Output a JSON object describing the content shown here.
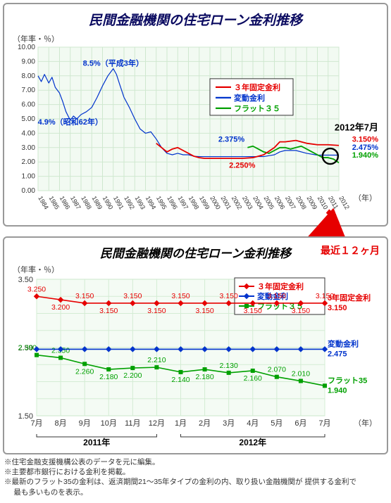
{
  "palette": {
    "red": "#e60000",
    "blue": "#0033cc",
    "green": "#00a000",
    "grid": "#cfe8cf",
    "axis": "#444444",
    "panel_border": "#999999",
    "text": "#222222",
    "black": "#000000",
    "title_top": "#0a0a60",
    "title_bottom": "#000000"
  },
  "chart1": {
    "title": "民間金融機関の住宅ローン金利推移",
    "title_color": "#0a0a60",
    "title_fontsize": 19,
    "y_label": "（年率・％）",
    "x_label": "（年）",
    "plot_bg": "#f2faf2",
    "grid_color": "#cfe8cf",
    "ylim": [
      0,
      10
    ],
    "ytick_step": 1.0,
    "yticks": [
      "0.00",
      "1.00",
      "2.00",
      "3.00",
      "4.00",
      "5.00",
      "6.00",
      "7.00",
      "8.00",
      "9.00",
      "10.00"
    ],
    "x_years": [
      1984,
      1985,
      1986,
      1987,
      1988,
      1989,
      1990,
      1991,
      1992,
      1993,
      1994,
      1995,
      1996,
      1997,
      1998,
      1999,
      2000,
      2001,
      2002,
      2003,
      2004,
      2005,
      2006,
      2007,
      2008,
      2009,
      2010,
      2011,
      2012
    ],
    "legend": [
      {
        "label": "３年固定金利",
        "color": "#e60000"
      },
      {
        "label": "変動金利",
        "color": "#0033cc"
      },
      {
        "label": "フラット３５",
        "color": "#00a000"
      }
    ],
    "annotations": [
      {
        "text": "8.5%（平成3年）",
        "color": "#0033cc",
        "x_year": 1991,
        "y_val": 8.7,
        "anchor": "bottom"
      },
      {
        "text": "4.9%（昭和62年）",
        "color": "#0033cc",
        "x_year": 1987,
        "y_val": 4.6,
        "anchor": "top"
      },
      {
        "text": "2.375%",
        "color": "#0033cc",
        "x_year": 2002,
        "y_val": 3.4,
        "anchor": ""
      },
      {
        "text": "2.250%",
        "color": "#e60000",
        "x_year": 2003,
        "y_val": 1.6,
        "anchor": ""
      }
    ],
    "end_marker": {
      "label": "2012年7月",
      "label_color": "#000000",
      "circle_year": 2011.2,
      "circle_val": 2.4,
      "values": [
        {
          "text": "3.150%",
          "color": "#e60000"
        },
        {
          "text": "2.475%",
          "color": "#0033cc"
        },
        {
          "text": "1.940%",
          "color": "#00a000"
        }
      ]
    },
    "series": {
      "variable": {
        "color": "#0033cc",
        "stroke_width": 1.2,
        "points": [
          [
            1984.0,
            8.0
          ],
          [
            1984.3,
            7.6
          ],
          [
            1984.6,
            8.1
          ],
          [
            1985.0,
            7.5
          ],
          [
            1985.3,
            7.9
          ],
          [
            1985.6,
            7.2
          ],
          [
            1986.0,
            6.8
          ],
          [
            1986.3,
            6.2
          ],
          [
            1986.6,
            5.5
          ],
          [
            1987.0,
            4.9
          ],
          [
            1987.3,
            5.2
          ],
          [
            1987.6,
            5.0
          ],
          [
            1988.0,
            5.3
          ],
          [
            1988.5,
            5.5
          ],
          [
            1989.0,
            5.8
          ],
          [
            1989.5,
            6.5
          ],
          [
            1990.0,
            7.3
          ],
          [
            1990.5,
            8.0
          ],
          [
            1991.0,
            8.5
          ],
          [
            1991.3,
            8.1
          ],
          [
            1991.6,
            7.4
          ],
          [
            1992.0,
            6.5
          ],
          [
            1992.5,
            5.8
          ],
          [
            1993.0,
            5.0
          ],
          [
            1993.5,
            4.3
          ],
          [
            1994.0,
            4.0
          ],
          [
            1994.5,
            4.1
          ],
          [
            1995.0,
            3.6
          ],
          [
            1995.5,
            3.0
          ],
          [
            1996.0,
            2.6
          ],
          [
            1996.5,
            2.5
          ],
          [
            1997.0,
            2.6
          ],
          [
            1997.5,
            2.5
          ],
          [
            1998.0,
            2.5
          ],
          [
            1998.5,
            2.4
          ],
          [
            1999.0,
            2.375
          ],
          [
            2000.0,
            2.375
          ],
          [
            2001.0,
            2.375
          ],
          [
            2002.0,
            2.375
          ],
          [
            2003.0,
            2.375
          ],
          [
            2004.0,
            2.375
          ],
          [
            2005.0,
            2.375
          ],
          [
            2006.0,
            2.5
          ],
          [
            2006.5,
            2.7
          ],
          [
            2007.0,
            2.8
          ],
          [
            2008.0,
            2.8
          ],
          [
            2009.0,
            2.6
          ],
          [
            2010.0,
            2.475
          ],
          [
            2011.0,
            2.475
          ],
          [
            2012.0,
            2.475
          ]
        ]
      },
      "fixed3": {
        "color": "#e60000",
        "stroke_width": 1.8,
        "points": [
          [
            1995.0,
            3.3
          ],
          [
            1995.5,
            3.0
          ],
          [
            1996.0,
            2.7
          ],
          [
            1996.5,
            2.9
          ],
          [
            1997.0,
            3.0
          ],
          [
            1997.5,
            2.8
          ],
          [
            1998.0,
            2.6
          ],
          [
            1998.5,
            2.4
          ],
          [
            1999.0,
            2.3
          ],
          [
            1999.5,
            2.25
          ],
          [
            2000.0,
            2.25
          ],
          [
            2001.0,
            2.25
          ],
          [
            2002.0,
            2.25
          ],
          [
            2003.0,
            2.25
          ],
          [
            2004.0,
            2.3
          ],
          [
            2005.0,
            2.5
          ],
          [
            2006.0,
            3.0
          ],
          [
            2006.5,
            3.4
          ],
          [
            2007.0,
            3.4
          ],
          [
            2008.0,
            3.5
          ],
          [
            2009.0,
            3.3
          ],
          [
            2010.0,
            3.2
          ],
          [
            2011.0,
            3.2
          ],
          [
            2012.0,
            3.15
          ]
        ]
      },
      "flat35": {
        "color": "#00a000",
        "stroke_width": 1.8,
        "points": [
          [
            2003.5,
            3.0
          ],
          [
            2004.0,
            3.1
          ],
          [
            2004.5,
            2.9
          ],
          [
            2005.0,
            2.7
          ],
          [
            2005.5,
            2.6
          ],
          [
            2006.0,
            2.8
          ],
          [
            2006.5,
            3.0
          ],
          [
            2007.0,
            3.0
          ],
          [
            2007.5,
            2.9
          ],
          [
            2008.0,
            3.0
          ],
          [
            2008.5,
            3.1
          ],
          [
            2009.0,
            2.9
          ],
          [
            2009.5,
            2.7
          ],
          [
            2010.0,
            2.5
          ],
          [
            2010.5,
            2.3
          ],
          [
            2011.0,
            2.3
          ],
          [
            2011.5,
            2.2
          ],
          [
            2012.0,
            1.94
          ]
        ]
      }
    }
  },
  "chart2": {
    "title": "民間金融機関の住宅ローン金利推移",
    "title_color": "#000000",
    "title_fontsize": 17,
    "subtitle": "最近１２ヶ月",
    "subtitle_color": "#e60000",
    "y_label": "（年率・％）",
    "x_label": "（年）",
    "plot_bg": "#f4fbf4",
    "grid_color": "#d4ecd4",
    "ylim": [
      1.5,
      3.5
    ],
    "yticks": [
      "1.50",
      "2.50",
      "3.50"
    ],
    "x_categories": [
      "7月",
      "8月",
      "9月",
      "10月",
      "11月",
      "12月",
      "1月",
      "2月",
      "3月",
      "4月",
      "5月",
      "6月",
      "7月"
    ],
    "year_brackets": [
      {
        "label": "2011年",
        "from_idx": 0,
        "to_idx": 5
      },
      {
        "label": "2012年",
        "from_idx": 6,
        "to_idx": 12
      }
    ],
    "legend": [
      {
        "label": "３年固定金利",
        "color": "#e60000",
        "marker": "diamond"
      },
      {
        "label": "変動金利",
        "color": "#0033cc",
        "marker": "diamond"
      },
      {
        "label": "フラット３５",
        "color": "#00a000",
        "marker": "square"
      }
    ],
    "series": {
      "fixed3": {
        "color": "#e60000",
        "stroke_width": 1.6,
        "marker": "diamond",
        "values": [
          3.25,
          3.2,
          3.15,
          3.15,
          3.15,
          3.15,
          3.15,
          3.15,
          3.15,
          3.15,
          3.15,
          3.15,
          3.15
        ],
        "data_labels": [
          {
            "i": 0,
            "text": "3.250",
            "pos": "above"
          },
          {
            "i": 1,
            "text": "3.200",
            "pos": "below"
          },
          {
            "i": 2,
            "text": "3.150",
            "pos": "above"
          },
          {
            "i": 3,
            "text": "3.150",
            "pos": "below"
          },
          {
            "i": 4,
            "text": "3.150",
            "pos": "above"
          },
          {
            "i": 5,
            "text": "3.150",
            "pos": "below"
          },
          {
            "i": 6,
            "text": "3.150",
            "pos": "above"
          },
          {
            "i": 7,
            "text": "3.150",
            "pos": "below"
          },
          {
            "i": 8,
            "text": "3.150",
            "pos": "above"
          },
          {
            "i": 9,
            "text": "3.150",
            "pos": "below"
          },
          {
            "i": 10,
            "text": "3.150",
            "pos": "above"
          },
          {
            "i": 11,
            "text": "3.150",
            "pos": "below"
          },
          {
            "i": 12,
            "text": "3.150",
            "pos": "above"
          }
        ]
      },
      "variable": {
        "color": "#0033cc",
        "stroke_width": 1.6,
        "marker": "diamond",
        "values": [
          2.475,
          2.475,
          2.475,
          2.475,
          2.475,
          2.475,
          2.475,
          2.475,
          2.475,
          2.475,
          2.475,
          2.475,
          2.475
        ],
        "data_labels": []
      },
      "flat35": {
        "color": "#00a000",
        "stroke_width": 1.6,
        "marker": "square",
        "values": [
          2.39,
          2.35,
          2.26,
          2.18,
          2.2,
          2.21,
          2.14,
          2.18,
          2.13,
          2.16,
          2.07,
          2.01,
          1.94
        ],
        "data_labels": [
          {
            "i": 0,
            "text": "2.390",
            "pos": "aboveL"
          },
          {
            "i": 1,
            "text": "2.350",
            "pos": "above"
          },
          {
            "i": 2,
            "text": "2.260",
            "pos": "below"
          },
          {
            "i": 3,
            "text": "2.180",
            "pos": "below"
          },
          {
            "i": 4,
            "text": "2.200",
            "pos": "below"
          },
          {
            "i": 5,
            "text": "2.210",
            "pos": "above"
          },
          {
            "i": 6,
            "text": "2.140",
            "pos": "below"
          },
          {
            "i": 7,
            "text": "2.180",
            "pos": "below"
          },
          {
            "i": 8,
            "text": "2.130",
            "pos": "above"
          },
          {
            "i": 9,
            "text": "2.160",
            "pos": "below"
          },
          {
            "i": 10,
            "text": "2.070",
            "pos": "above"
          },
          {
            "i": 11,
            "text": "2.010",
            "pos": "above"
          },
          {
            "i": 12,
            "text": "",
            "pos": ""
          }
        ]
      }
    },
    "right_labels": [
      {
        "name": "3年固定金利",
        "value": "3.150",
        "color": "#e60000"
      },
      {
        "name": "変動金利",
        "value": "2.475",
        "color": "#0033cc"
      },
      {
        "name": "フラット35",
        "value": "1.940",
        "color": "#00a000"
      }
    ]
  },
  "footnotes": [
    "※住宅金融支援機構公表のデータを元に編集。",
    "※主要都市銀行における金利を掲載。",
    "※最新のフラット35の金利は、返済期間21～35年タイプの金利の内、取り扱い金融機関が 提供する金利で",
    "　 最も多いものを表示。"
  ]
}
